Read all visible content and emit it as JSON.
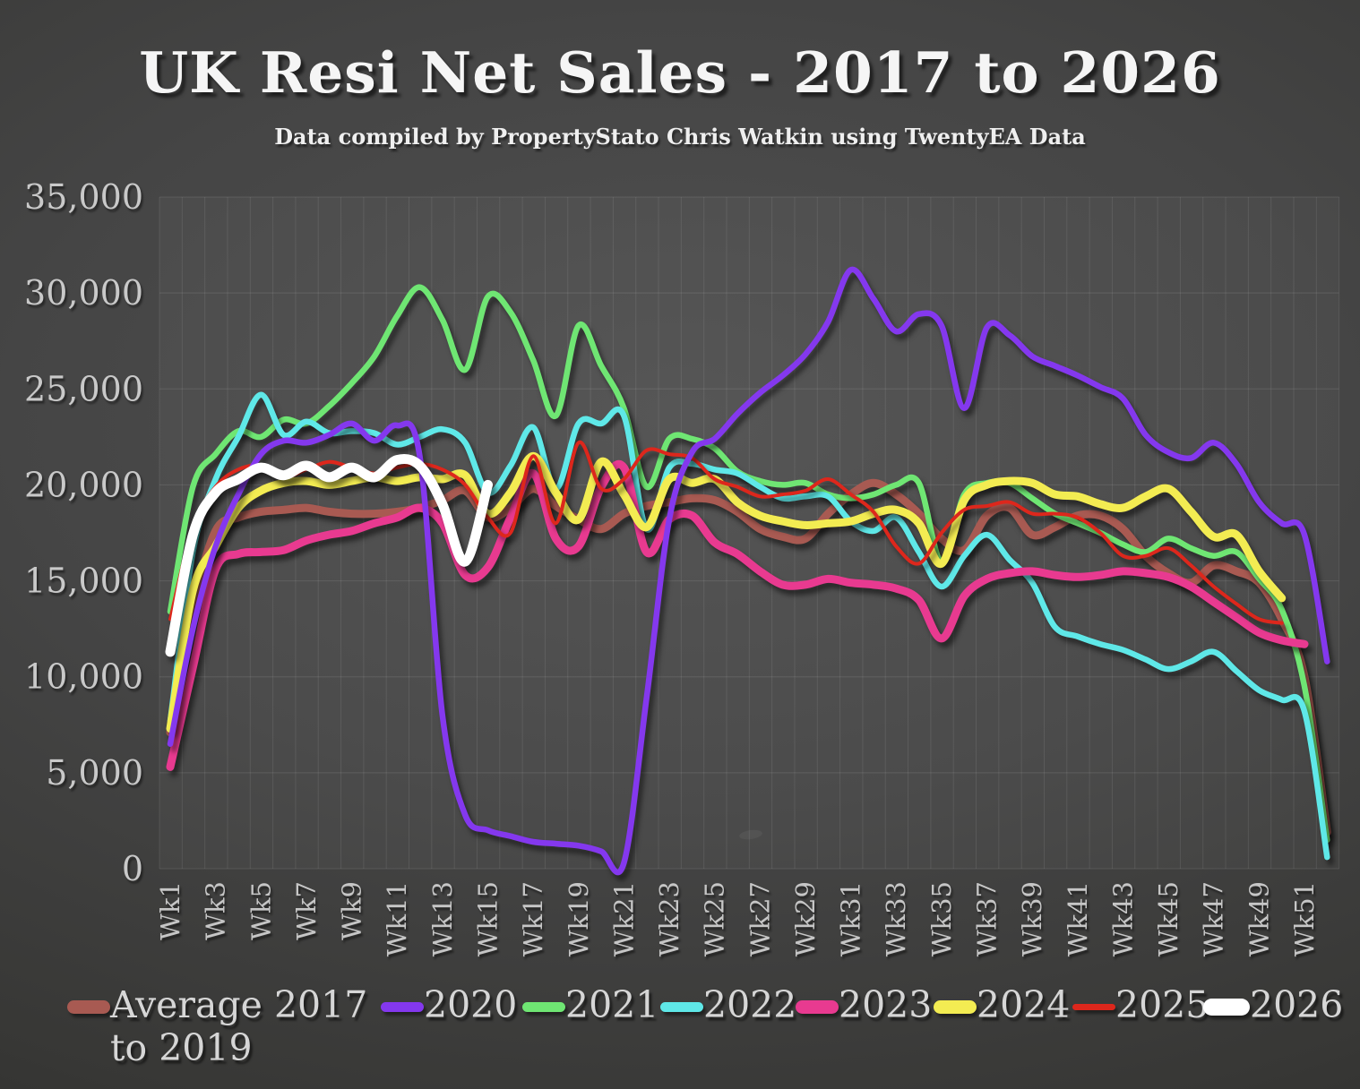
{
  "header": {
    "title": "UK  Resi Net Sales - 2017 to 2026",
    "subtitle": "Data compiled by PropertyStato Chris Watkin using TwentyEA Data"
  },
  "chart_data": {
    "type": "line",
    "title": "UK  Resi Net Sales - 2017 to 2026",
    "subtitle": "Data compiled by PropertyStato Chris Watkin using TwentyEA Data",
    "xlabel": "",
    "ylabel": "",
    "x_unit": "week",
    "weeks": 52,
    "x_tick_labels": [
      "Wk1",
      "Wk3",
      "Wk5",
      "Wk7",
      "Wk9",
      "Wk11",
      "Wk13",
      "Wk15",
      "Wk17",
      "Wk19",
      "Wk21",
      "Wk23",
      "Wk25",
      "Wk27",
      "Wk29",
      "Wk31",
      "Wk33",
      "Wk35",
      "Wk37",
      "Wk39",
      "Wk41",
      "Wk43",
      "Wk45",
      "Wk47",
      "Wk49",
      "Wk51"
    ],
    "ylim": [
      0,
      35000
    ],
    "y_ticks": [
      0,
      5000,
      10000,
      15000,
      20000,
      25000,
      30000,
      35000
    ],
    "y_tick_labels": [
      "0",
      "5,000",
      "10,000",
      "15,000",
      "20,000",
      "25,000",
      "30,000",
      "35,000"
    ],
    "grid": true,
    "legend_position": "bottom",
    "colors": {
      "grid": "rgba(255,255,255,0.09)",
      "plot_tint": "rgba(255,255,255,0.035)",
      "axis_text": "#c9c9c9",
      "legend_text": "#d6d6d6"
    },
    "series": [
      {
        "name": "Average 2017 to 2019",
        "label_lines": [
          "Average 2017",
          "to 2019"
        ],
        "color": "#a85a52",
        "line_width": 9,
        "z_order": 0,
        "values": [
          7100,
          13600,
          17600,
          18300,
          18600,
          18700,
          18800,
          18600,
          18500,
          18500,
          18600,
          18800,
          19200,
          19700,
          18300,
          18800,
          19800,
          18900,
          18200,
          17700,
          18500,
          18900,
          19100,
          19300,
          19200,
          18600,
          17700,
          17300,
          17200,
          18500,
          19500,
          20100,
          19500,
          18500,
          17200,
          16600,
          18400,
          18800,
          17400,
          17800,
          18400,
          18400,
          17700,
          16300,
          15400,
          14900,
          15800,
          15500,
          14900,
          13000,
          10000,
          1900
        ]
      },
      {
        "name": "2020",
        "label_lines": [
          "2020"
        ],
        "color": "#8438ee",
        "line_width": 6.5,
        "z_order": 6,
        "values": [
          6500,
          12500,
          16800,
          19500,
          21600,
          22300,
          22200,
          22600,
          23200,
          22300,
          23100,
          21500,
          8000,
          2800,
          2000,
          1700,
          1400,
          1300,
          1200,
          900,
          300,
          8900,
          18200,
          21700,
          22400,
          23700,
          24800,
          25700,
          26800,
          28500,
          31200,
          29700,
          28000,
          28900,
          28300,
          24000,
          28200,
          27800,
          26700,
          26200,
          25700,
          25100,
          24500,
          22600,
          21700,
          21400,
          22200,
          21100,
          19100,
          18000,
          17400,
          10800
        ]
      },
      {
        "name": "2021",
        "label_lines": [
          "2021"
        ],
        "color": "#6fe673",
        "line_width": 6.5,
        "z_order": 1,
        "values": [
          13400,
          19900,
          21600,
          22800,
          22500,
          23400,
          23200,
          24100,
          25300,
          26700,
          28800,
          30300,
          28600,
          26000,
          29800,
          29000,
          26500,
          23600,
          28300,
          26200,
          24000,
          19900,
          22400,
          22400,
          21900,
          20700,
          20200,
          20000,
          20100,
          19500,
          19300,
          19500,
          20000,
          20100,
          16000,
          19500,
          20100,
          20100,
          19300,
          18500,
          18000,
          17500,
          16900,
          16500,
          17200,
          16700,
          16300,
          16500,
          15100,
          13500,
          9500,
          1500
        ]
      },
      {
        "name": "2022",
        "label_lines": [
          "2022"
        ],
        "color": "#5fe8e8",
        "line_width": 6.5,
        "z_order": 2,
        "values": [
          7700,
          16500,
          20300,
          22500,
          24700,
          22600,
          23300,
          22700,
          22800,
          22700,
          22100,
          22500,
          22900,
          22200,
          19600,
          21000,
          23000,
          19800,
          23200,
          23200,
          23600,
          17700,
          20900,
          21100,
          20800,
          20600,
          19900,
          19300,
          19400,
          19400,
          18100,
          17600,
          18300,
          16500,
          14700,
          16300,
          17400,
          16100,
          14900,
          12600,
          12100,
          11700,
          11400,
          10900,
          10400,
          10800,
          11300,
          10300,
          9300,
          8800,
          8200,
          600
        ]
      },
      {
        "name": "2023",
        "label_lines": [
          "2023"
        ],
        "color": "#e83a90",
        "line_width": 9,
        "z_order": 3,
        "values": [
          5300,
          10500,
          15600,
          16400,
          16500,
          16600,
          17100,
          17400,
          17600,
          18000,
          18300,
          18800,
          18000,
          15300,
          15700,
          18300,
          20600,
          17200,
          16800,
          19900,
          20900,
          16500,
          18200,
          18400,
          17000,
          16400,
          15500,
          14800,
          14800,
          15100,
          14900,
          14800,
          14600,
          14000,
          12000,
          14200,
          15100,
          15400,
          15500,
          15300,
          15200,
          15300,
          15500,
          15400,
          15200,
          14700,
          13900,
          13100,
          12300,
          11900,
          11700,
          null
        ]
      },
      {
        "name": "2024",
        "label_lines": [
          "2024"
        ],
        "color": "#f3ec52",
        "line_width": 9,
        "z_order": 4,
        "values": [
          7300,
          14500,
          16800,
          18800,
          19700,
          20100,
          20200,
          20000,
          20200,
          20400,
          20200,
          20400,
          20300,
          20500,
          18500,
          19600,
          21500,
          19600,
          18200,
          21200,
          19500,
          17800,
          20300,
          20100,
          20300,
          19100,
          18400,
          18100,
          17900,
          18000,
          18100,
          18500,
          18700,
          18000,
          15900,
          19200,
          20000,
          20200,
          20100,
          19500,
          19400,
          19000,
          18800,
          19400,
          19800,
          18600,
          17300,
          17400,
          15500,
          14100,
          null,
          null
        ]
      },
      {
        "name": "2025",
        "label_lines": [
          "2025"
        ],
        "color": "#dd271c",
        "line_width": 4,
        "z_order": 5,
        "values": [
          13000,
          17800,
          19900,
          20800,
          21000,
          20400,
          20800,
          21200,
          20900,
          20600,
          20900,
          21100,
          20800,
          20000,
          18300,
          17500,
          21500,
          18000,
          22200,
          19800,
          20300,
          21800,
          21600,
          21400,
          20300,
          19900,
          19400,
          19500,
          19700,
          20300,
          19500,
          18600,
          16800,
          15900,
          17500,
          18700,
          18900,
          19100,
          18500,
          18500,
          18300,
          17500,
          16300,
          16300,
          16700,
          15800,
          14700,
          13800,
          13000,
          12800,
          null,
          null
        ]
      },
      {
        "name": "2026",
        "label_lines": [
          "2026"
        ],
        "color": "#ffffff",
        "line_width": 11,
        "z_order": 7,
        "values": [
          11300,
          17400,
          19600,
          20300,
          20900,
          20500,
          21000,
          20400,
          20900,
          20400,
          21300,
          21000,
          19000,
          16000,
          20000,
          null,
          null,
          null,
          null,
          null,
          null,
          null,
          null,
          null,
          null,
          null,
          null,
          null,
          null,
          null,
          null,
          null,
          null,
          null,
          null,
          null,
          null,
          null,
          null,
          null,
          null,
          null,
          null,
          null,
          null,
          null,
          null,
          null,
          null,
          null,
          null,
          null
        ]
      }
    ]
  }
}
